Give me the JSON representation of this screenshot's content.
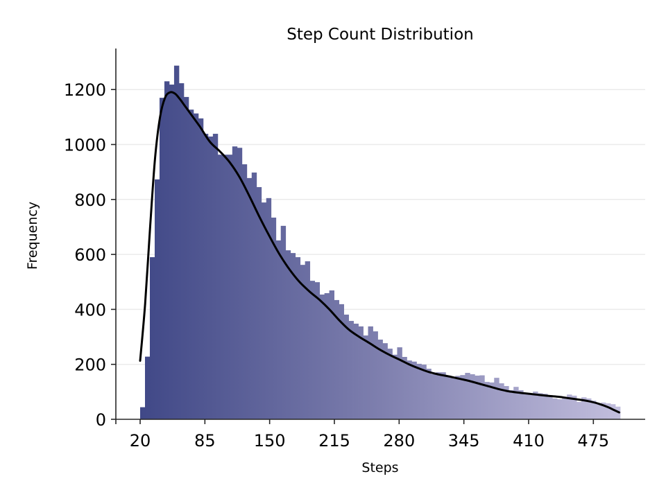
{
  "chart_data": {
    "type": "bar",
    "subtype": "histogram_with_kde",
    "title": "Step Count Distribution",
    "xlabel": "Steps",
    "ylabel": "Frequency",
    "xlim": [
      20,
      501
    ],
    "ylim": [
      0,
      1350
    ],
    "x_ticks": [
      20,
      85,
      150,
      215,
      280,
      345,
      410,
      475
    ],
    "y_ticks": [
      0,
      200,
      400,
      600,
      800,
      1000,
      1200
    ],
    "grid": {
      "y": true,
      "x": false,
      "color": "#ebebeb"
    },
    "legend": null,
    "bin_start": 20,
    "bin_width": 4.87,
    "bins": [
      44,
      228,
      590,
      873,
      1170,
      1230,
      1218,
      1287,
      1223,
      1173,
      1127,
      1113,
      1095,
      1039,
      1029,
      1039,
      963,
      963,
      963,
      993,
      988,
      928,
      878,
      898,
      845,
      789,
      805,
      734,
      651,
      704,
      615,
      605,
      590,
      562,
      575,
      504,
      499,
      454,
      459,
      469,
      434,
      419,
      381,
      358,
      348,
      338,
      305,
      338,
      320,
      290,
      277,
      257,
      235,
      262,
      227,
      214,
      210,
      202,
      199,
      184,
      164,
      171,
      171,
      159,
      155,
      158,
      161,
      169,
      164,
      159,
      160,
      136,
      134,
      151,
      131,
      121,
      106,
      118,
      106,
      91,
      91,
      101,
      95,
      93,
      81,
      76,
      73,
      76,
      90,
      86,
      63,
      80,
      76,
      68,
      59,
      61,
      58,
      55,
      46
    ],
    "kde": {
      "x": [
        20,
        25,
        30,
        35,
        40,
        45,
        50,
        55,
        60,
        65,
        70,
        80,
        90,
        100,
        110,
        120,
        130,
        140,
        150,
        160,
        170,
        180,
        190,
        200,
        210,
        220,
        230,
        240,
        250,
        260,
        270,
        280,
        290,
        300,
        310,
        320,
        330,
        340,
        350,
        360,
        370,
        380,
        390,
        400,
        410,
        420,
        430,
        440,
        450,
        460,
        470,
        480,
        490,
        495,
        501
      ],
      "y": [
        213,
        420,
        700,
        950,
        1100,
        1170,
        1190,
        1185,
        1165,
        1140,
        1115,
        1065,
        1010,
        975,
        935,
        880,
        810,
        735,
        665,
        600,
        545,
        500,
        465,
        435,
        400,
        360,
        325,
        300,
        278,
        255,
        235,
        218,
        200,
        185,
        172,
        163,
        156,
        148,
        140,
        130,
        120,
        110,
        102,
        97,
        93,
        89,
        85,
        82,
        77,
        72,
        66,
        57,
        44,
        35,
        25
      ],
      "color": "#000000"
    },
    "colors": {
      "bar_start": "#404887",
      "bar_mid": "#7e7fae",
      "bar_end": "#c2bedd",
      "axis": "#262626"
    }
  }
}
